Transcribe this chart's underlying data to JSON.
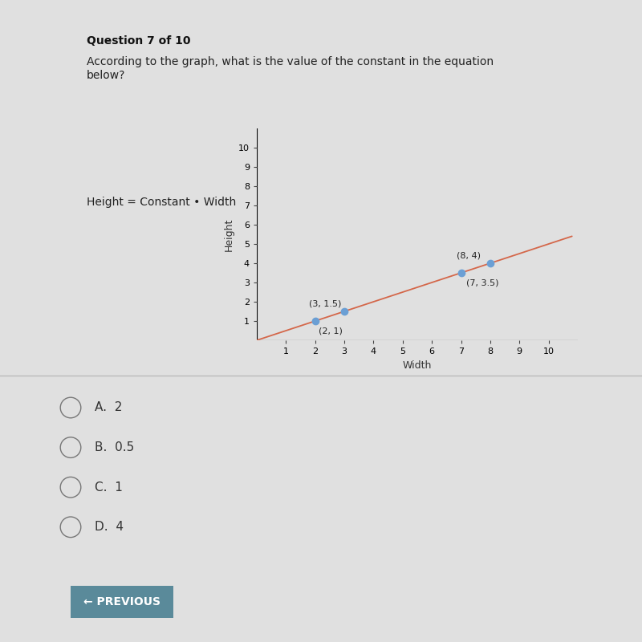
{
  "question_header": "Question 7 of 10",
  "question_text": "According to the graph, what is the value of the constant in the equation\nbelow?",
  "equation_label": "Height = Constant • Width",
  "points": [
    [
      2,
      1
    ],
    [
      3,
      1.5
    ],
    [
      7,
      3.5
    ],
    [
      8,
      4
    ]
  ],
  "point_labels": [
    "(2, 1)",
    "(3, 1.5)",
    "(7, 3.5)",
    "(8, 4)"
  ],
  "line_x": [
    0,
    10.8
  ],
  "line_slope": 0.5,
  "line_color": "#d4674a",
  "point_color": "#6b9fd4",
  "xlabel": "Width",
  "ylabel": "Height",
  "xlim": [
    0,
    11
  ],
  "ylim": [
    0,
    11
  ],
  "xticks": [
    1,
    2,
    3,
    4,
    5,
    6,
    7,
    8,
    9,
    10
  ],
  "yticks": [
    1,
    2,
    3,
    4,
    5,
    6,
    7,
    8,
    9,
    10
  ],
  "choices": [
    "A.  2",
    "B.  0.5",
    "C.  1",
    "D.  4"
  ],
  "button_text": "← PREVIOUS",
  "button_color": "#5a8a9a",
  "bg_color": "#e0e0e0",
  "header_fontsize": 10,
  "question_fontsize": 10,
  "axis_label_fontsize": 9,
  "tick_fontsize": 8,
  "choices_fontsize": 11,
  "point_label_fontsize": 8,
  "eq_label_fontsize": 10
}
